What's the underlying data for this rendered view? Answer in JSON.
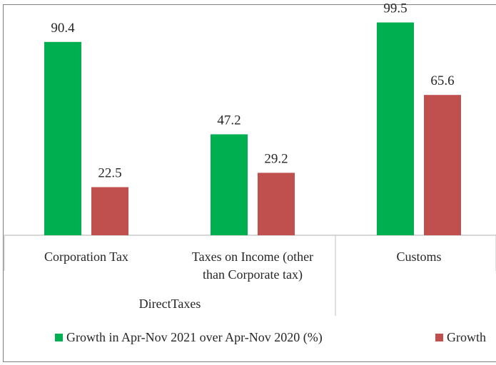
{
  "chart_data": {
    "type": "bar",
    "categories": [
      "Corporation Tax",
      "Taxes on Income (other than Corporate tax)",
      "Customs"
    ],
    "category_lines": [
      [
        "Corporation Tax"
      ],
      [
        "Taxes on Income (other",
        "than Corporate tax)"
      ],
      [
        "Customs"
      ]
    ],
    "groups": [
      {
        "label": "DirectTaxes",
        "categories": [
          "Corporation Tax",
          "Taxes on Income (other than Corporate tax)"
        ]
      }
    ],
    "series": [
      {
        "name": "Growth in Apr-Nov 2021 over Apr-Nov 2020 (%)",
        "color": "#00b050",
        "values": [
          90.4,
          47.2,
          99.5
        ]
      },
      {
        "name": "Growth",
        "color": "#c0504d",
        "values": [
          22.5,
          29.2,
          65.6
        ]
      }
    ],
    "ylim": [
      0,
      100
    ],
    "grid": false,
    "legend": "bottom",
    "title": "",
    "xlabel": "",
    "ylabel": ""
  }
}
